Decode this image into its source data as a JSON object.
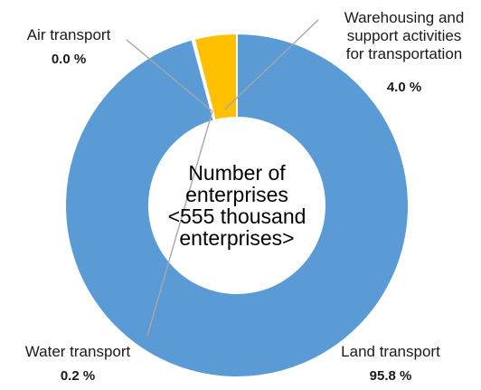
{
  "chart_data": {
    "type": "pie",
    "variant": "donut",
    "center_label": [
      "Number of",
      "enterprises",
      "<555 thousand",
      "enterprises>"
    ],
    "slices": [
      {
        "name": "Land transport",
        "label_lines": [
          "Land transport"
        ],
        "value": 95.8,
        "value_label": "95.8 %",
        "color": "#5b9bd5"
      },
      {
        "name": "Water transport",
        "label_lines": [
          "Water transport"
        ],
        "value": 0.2,
        "value_label": "0.2 %",
        "color": "#ffffff"
      },
      {
        "name": "Air transport",
        "label_lines": [
          "Air transport"
        ],
        "value": 0.0,
        "value_label": "0.0 %",
        "color": "#ffffff"
      },
      {
        "name": "Warehousing and support activities for transportation",
        "label_lines": [
          "Warehousing and",
          "support activities",
          "for transportation"
        ],
        "value": 4.0,
        "value_label": "4.0 %",
        "color": "#ffc000"
      }
    ],
    "slice_border_color": "#ffffff",
    "leader_line_color": "#a6a6a6",
    "start_angle_deg": 0,
    "direction": "clockwise",
    "legend": "none"
  }
}
